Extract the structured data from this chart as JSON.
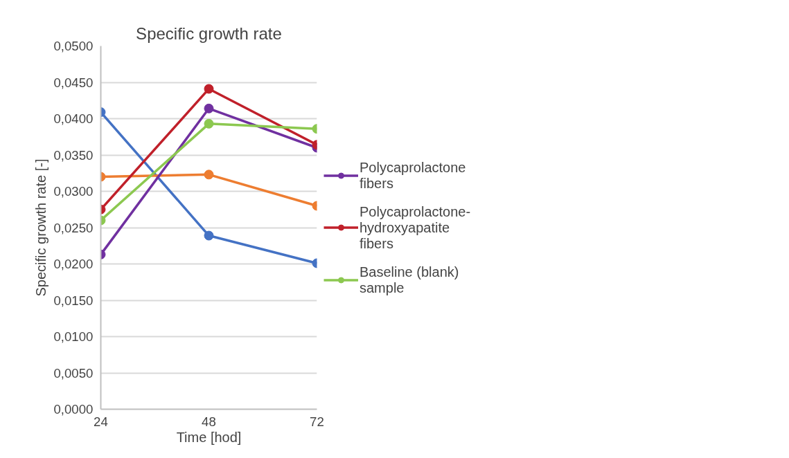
{
  "chart_data": {
    "type": "line",
    "title": "Specific growth rate",
    "xlabel": "Time [hod]",
    "ylabel": "Specific growth rate [-]",
    "x": [
      24,
      48,
      72
    ],
    "xlim": [
      24,
      72
    ],
    "xticks": [
      24,
      48,
      72
    ],
    "ylim": [
      0,
      0.05
    ],
    "yticks": [
      {
        "value": 0,
        "label": "0,0000"
      },
      {
        "value": 0.005,
        "label": "0,0050"
      },
      {
        "value": 0.01,
        "label": "0,0100"
      },
      {
        "value": 0.015,
        "label": "0,0150"
      },
      {
        "value": 0.02,
        "label": "0,0200"
      },
      {
        "value": 0.025,
        "label": "0,0250"
      },
      {
        "value": 0.03,
        "label": "0,0300"
      },
      {
        "value": 0.035,
        "label": "0,0350"
      },
      {
        "value": 0.04,
        "label": "0,0400"
      },
      {
        "value": 0.045,
        "label": "0,0450"
      },
      {
        "value": 0.05,
        "label": "0,0500"
      }
    ],
    "series": [
      {
        "color": "#4472c4",
        "values": [
          0.0409,
          0.0239,
          0.0201
        ]
      },
      {
        "color": "#ed7d31",
        "values": [
          0.032,
          0.0323,
          0.028
        ]
      },
      {
        "name": "Polycaprolactone fibers",
        "color": "#7030a0",
        "values": [
          0.0213,
          0.0414,
          0.036
        ]
      },
      {
        "name": "Polycaprolactone-hydroxyapatite fibers",
        "color": "#c0202a",
        "values": [
          0.0275,
          0.0441,
          0.0364
        ]
      },
      {
        "name": "Baseline (blank) sample",
        "color": "#8cc850",
        "values": [
          0.026,
          0.0393,
          0.0386
        ]
      }
    ],
    "grid": "y",
    "legend": "right",
    "marker": "circle",
    "line_style": "solid"
  }
}
